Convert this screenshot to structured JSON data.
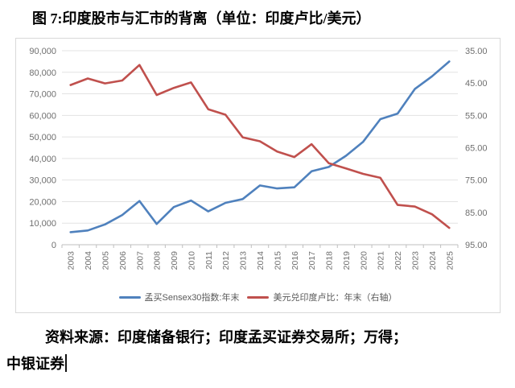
{
  "page": {
    "title": "图 7:印度股市与汇市的背离（单位：印度卢比/美元）",
    "source_line1": "资料来源：印度储备银行；印度孟买证券交易所；万得；",
    "source_line2": "中银证券"
  },
  "chart_data": {
    "type": "line",
    "title": "",
    "xlabel": "",
    "ylabel_left": "",
    "ylabel_right": "",
    "categories": [
      "2003",
      "2004",
      "2005",
      "2006",
      "2007",
      "2008",
      "2009",
      "2010",
      "2011",
      "2012",
      "2013",
      "2014",
      "2015",
      "2016",
      "2017",
      "2018",
      "2019",
      "2020",
      "2021",
      "2022",
      "2023",
      "2024",
      "2025"
    ],
    "series": [
      {
        "name": "孟买Sensex30指数:年末",
        "axis": "left",
        "color": "#4F81BD",
        "values": [
          5839,
          6603,
          9398,
          13787,
          20287,
          9647,
          17465,
          20509,
          15455,
          19427,
          21171,
          27499,
          26118,
          26626,
          34057,
          36068,
          41254,
          47751,
          58254,
          60841,
          72240,
          78139,
          85000
        ]
      },
      {
        "name": "美元兑印度卢比：年末（右轴）",
        "axis": "right",
        "color": "#C0504D",
        "values": [
          45.6,
          43.6,
          45.1,
          44.2,
          39.4,
          48.7,
          46.5,
          44.8,
          53.1,
          54.8,
          61.8,
          63.0,
          66.2,
          67.9,
          63.9,
          69.8,
          71.4,
          73.1,
          74.3,
          82.7,
          83.2,
          85.6,
          89.8
        ]
      }
    ],
    "left_axis": {
      "min": 0,
      "max": 90000,
      "step": 10000,
      "tick_labels": [
        "0",
        "10,000",
        "20,000",
        "30,000",
        "40,000",
        "50,000",
        "60,000",
        "70,000",
        "80,000",
        "90,000"
      ]
    },
    "right_axis": {
      "min": 35,
      "max": 95,
      "step": 10,
      "inverted": true,
      "tick_labels": [
        "35.00",
        "45.00",
        "55.00",
        "65.00",
        "75.00",
        "85.00",
        "95.00"
      ]
    },
    "grid": true,
    "legend_position": "bottom",
    "colors": {
      "grid": "#e3e3e3",
      "axis_line": "#bfbfbf",
      "tick_label": "#6f6f6f",
      "legend_text": "#595959",
      "frame_border": "#d9d9d9"
    }
  }
}
